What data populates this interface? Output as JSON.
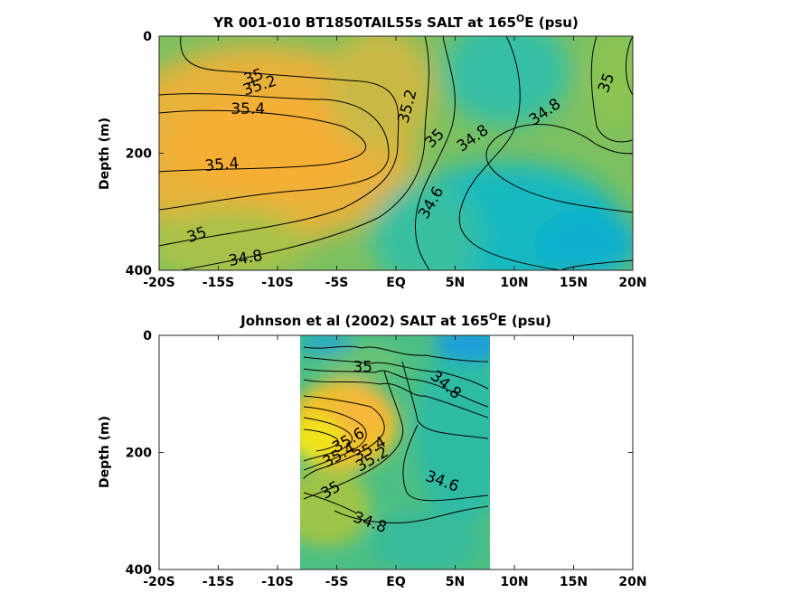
{
  "chart_data": [
    {
      "type": "heatmap",
      "subtype": "filled-contour",
      "title": "YR 001-010 BT1850TAIL55s SALT at 165",
      "title_superscript": "O",
      "title_suffix": "E (psu)",
      "xlabel": "",
      "ylabel": "Depth (m)",
      "x_ticks": [
        -20,
        -15,
        -10,
        -5,
        0,
        5,
        10,
        15,
        20
      ],
      "x_tick_labels": [
        "-20S",
        "-15S",
        "-10S",
        "-5S",
        "EQ",
        "5N",
        "10N",
        "15N",
        "20N"
      ],
      "xlim": [
        -20,
        20
      ],
      "y_ticks": [
        0,
        200,
        400
      ],
      "y_tick_labels": [
        "0",
        "200",
        "400"
      ],
      "ylim": [
        0,
        400
      ],
      "y_reversed": true,
      "data_extent": [
        -20,
        20
      ],
      "contour_levels": [
        34.6,
        34.8,
        35,
        35.2,
        35.4
      ],
      "contour_labels": [
        {
          "text": "35",
          "x": -12,
          "y": 70,
          "rot": -20
        },
        {
          "text": "35.2",
          "x": -11.5,
          "y": 85,
          "rot": -18
        },
        {
          "text": "35.4",
          "x": -12.5,
          "y": 125,
          "rot": 0
        },
        {
          "text": "35.4",
          "x": -14.7,
          "y": 220,
          "rot": -5
        },
        {
          "text": "35.2",
          "x": 1.0,
          "y": 120,
          "rot": -75
        },
        {
          "text": "35",
          "x": 3.3,
          "y": 175,
          "rot": -45
        },
        {
          "text": "34.8",
          "x": 6.5,
          "y": 175,
          "rot": -35
        },
        {
          "text": "34.8",
          "x": 12.6,
          "y": 130,
          "rot": -35
        },
        {
          "text": "35",
          "x": 17.8,
          "y": 80,
          "rot": -70
        },
        {
          "text": "34.6",
          "x": 3.0,
          "y": 285,
          "rot": -60
        },
        {
          "text": "35",
          "x": -16.8,
          "y": 340,
          "rot": -20
        },
        {
          "text": "34.8",
          "x": -12.7,
          "y": 380,
          "rot": -10
        }
      ]
    },
    {
      "type": "heatmap",
      "subtype": "filled-contour",
      "title": "Johnson et al (2002) SALT at 165",
      "title_superscript": "O",
      "title_suffix": "E (psu)",
      "xlabel": "",
      "ylabel": "Depth (m)",
      "x_ticks": [
        -20,
        -15,
        -10,
        -5,
        0,
        5,
        10,
        15,
        20
      ],
      "x_tick_labels": [
        "-20S",
        "-15S",
        "-10S",
        "-5S",
        "EQ",
        "5N",
        "10N",
        "15N",
        "20N"
      ],
      "xlim": [
        -20,
        20
      ],
      "y_ticks": [
        0,
        200,
        400
      ],
      "y_tick_labels": [
        "0",
        "200",
        "400"
      ],
      "ylim": [
        0,
        400
      ],
      "y_reversed": true,
      "data_extent": [
        -8,
        8
      ],
      "contour_levels": [
        34.2,
        34.4,
        34.6,
        34.8,
        35,
        35.2,
        35.4,
        35.6
      ],
      "contour_labels": [
        {
          "text": "35",
          "x": -2.8,
          "y": 55,
          "rot": 0
        },
        {
          "text": "34.8",
          "x": 4.2,
          "y": 85,
          "rot": 40
        },
        {
          "text": "35.6",
          "x": -4.0,
          "y": 180,
          "rot": -30
        },
        {
          "text": "35.4",
          "x": -2.2,
          "y": 195,
          "rot": -30
        },
        {
          "text": "35.2",
          "x": -2.0,
          "y": 212,
          "rot": -30
        },
        {
          "text": "35.4",
          "x": -4.8,
          "y": 205,
          "rot": -30
        },
        {
          "text": "35",
          "x": -5.5,
          "y": 265,
          "rot": -30
        },
        {
          "text": "34.6",
          "x": 3.9,
          "y": 250,
          "rot": 20
        },
        {
          "text": "34.8",
          "x": -2.2,
          "y": 320,
          "rot": 20
        }
      ]
    }
  ]
}
